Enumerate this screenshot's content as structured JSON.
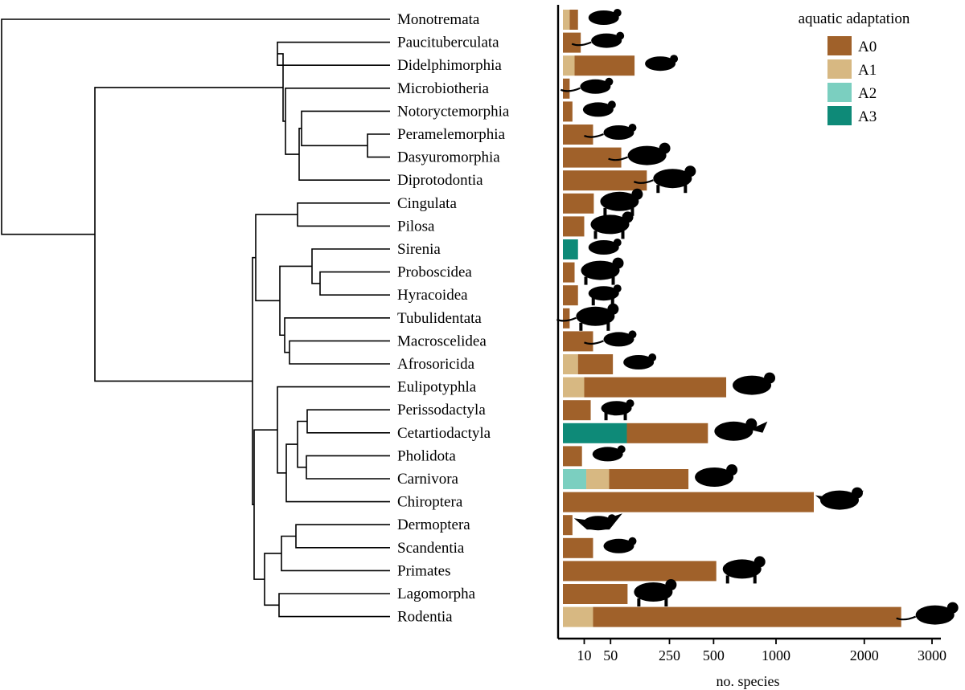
{
  "chart_data": {
    "type": "bar",
    "stacked": true,
    "scale": "sqrt",
    "xlabel": "no. species",
    "xticks": [
      10,
      50,
      250,
      500,
      1000,
      2000,
      3000
    ],
    "xlim": [
      0,
      3000
    ],
    "legend": {
      "title": "aquatic adaptation",
      "placement": "top-right",
      "items": [
        {
          "label": "A0",
          "color": "#A0612A"
        },
        {
          "label": "A1",
          "color": "#D7B882"
        },
        {
          "label": "A2",
          "color": "#7BCFC0"
        },
        {
          "label": "A3",
          "color": "#0E8A78"
        }
      ]
    },
    "categories": [
      "Monotremata",
      "Paucituberculata",
      "Didelphimorphia",
      "Microbiotheria",
      "Notoryctemorphia",
      "Peramelemorphia",
      "Dasyuromorphia",
      "Diprotodontia",
      "Cingulata",
      "Pilosa",
      "Sirenia",
      "Proboscidea",
      "Hyracoidea",
      "Tubulidentata",
      "Macroscelidea",
      "Afrosoricida",
      "Eulipotyphla",
      "Perissodactyla",
      "Cetartiodactyla",
      "Pholidota",
      "Carnivora",
      "Chiroptera",
      "Dermoptera",
      "Scandentia",
      "Primates",
      "Lagomorpha",
      "Rodentia"
    ],
    "series": [
      {
        "name": "A0",
        "values": [
          4,
          7,
          110,
          1,
          2,
          20,
          75,
          155,
          21,
          10,
          0,
          3,
          5,
          1,
          20,
          50,
          577,
          17,
          373,
          8,
          300,
          1386,
          2,
          20,
          518,
          92,
          2500
        ]
      },
      {
        "name": "A1",
        "values": [
          1,
          0,
          3,
          0,
          0,
          0,
          0,
          0,
          0,
          0,
          0,
          0,
          0,
          0,
          0,
          5,
          10,
          0,
          0,
          0,
          35,
          0,
          0,
          0,
          0,
          0,
          20
        ]
      },
      {
        "name": "A2",
        "values": [
          0,
          0,
          0,
          0,
          0,
          0,
          0,
          0,
          0,
          0,
          0,
          0,
          0,
          0,
          0,
          0,
          0,
          0,
          0,
          0,
          12,
          0,
          0,
          0,
          0,
          0,
          0
        ]
      },
      {
        "name": "A3",
        "values": [
          0,
          0,
          0,
          0,
          0,
          0,
          0,
          0,
          0,
          0,
          5,
          0,
          0,
          0,
          0,
          0,
          0,
          0,
          90,
          0,
          0,
          0,
          0,
          0,
          0,
          0,
          0
        ]
      }
    ]
  },
  "colors": {
    "A0": "#A0612A",
    "A1": "#D7B882",
    "A2": "#7BCFC0",
    "A3": "#0E8A78"
  },
  "silhouettes": [
    "platypus",
    "opossum",
    "quoll",
    "dormouse-possum",
    "marsupial-mole",
    "bandicoot",
    "thylacine",
    "kangaroo",
    "armadillo",
    "anteater",
    "manatee",
    "elephant",
    "hyrax",
    "aardvark",
    "elephant-shrew",
    "tenrec",
    "hedgehog",
    "horse",
    "whale",
    "pangolin",
    "sea-lion",
    "bat",
    "colugo",
    "treeshrew",
    "gorilla",
    "rabbit",
    "rat"
  ]
}
